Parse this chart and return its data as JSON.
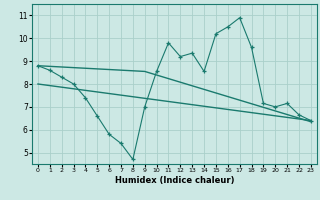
{
  "xlabel": "Humidex (Indice chaleur)",
  "ylabel": "",
  "background_color": "#cce8e4",
  "line_color": "#1a7a6e",
  "grid_color": "#aad0ca",
  "xlim": [
    -0.5,
    23.5
  ],
  "ylim": [
    4.5,
    11.5
  ],
  "xticks": [
    0,
    1,
    2,
    3,
    4,
    5,
    6,
    7,
    8,
    9,
    10,
    11,
    12,
    13,
    14,
    15,
    16,
    17,
    18,
    19,
    20,
    21,
    22,
    23
  ],
  "yticks": [
    5,
    6,
    7,
    8,
    9,
    10,
    11
  ],
  "line1_x": [
    0,
    1,
    2,
    3,
    4,
    5,
    6,
    7,
    8,
    9,
    10,
    11,
    12,
    13,
    14,
    15,
    16,
    17,
    18,
    19,
    20,
    21,
    22,
    23
  ],
  "line1_y": [
    8.8,
    8.6,
    8.3,
    8.0,
    7.4,
    6.6,
    5.8,
    5.4,
    4.7,
    7.0,
    8.55,
    9.8,
    9.2,
    9.35,
    8.55,
    10.2,
    10.5,
    10.9,
    9.6,
    7.15,
    7.0,
    7.15,
    6.65,
    6.4
  ],
  "line2_x": [
    0,
    9,
    23
  ],
  "line2_y": [
    8.8,
    8.55,
    6.35
  ],
  "line3_x": [
    0,
    23
  ],
  "line3_y": [
    8.0,
    6.4
  ]
}
